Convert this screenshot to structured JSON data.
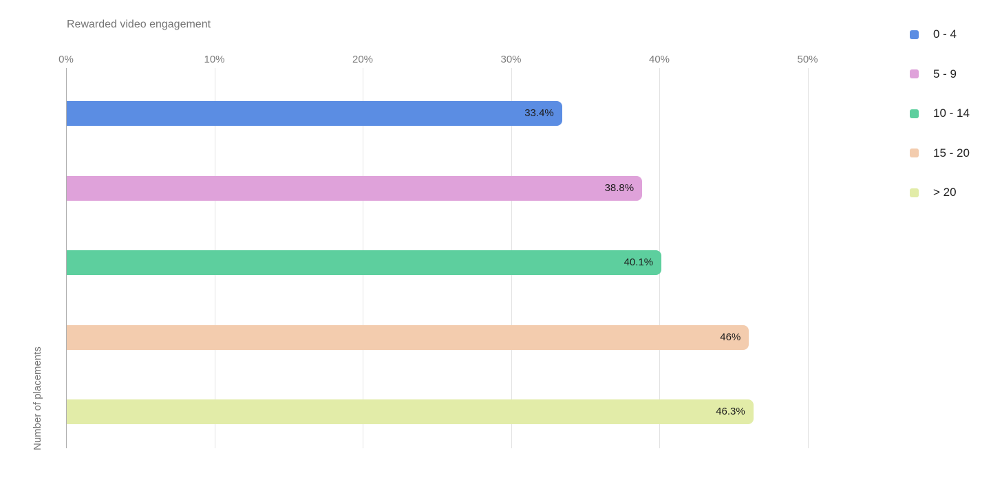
{
  "chart_data": {
    "type": "bar",
    "orientation": "horizontal",
    "title": "Rewarded video engagement",
    "xlabel": "",
    "ylabel": "Number of placements",
    "categories": [
      "0 - 4",
      "5 - 9",
      "10 - 14",
      "15 - 20",
      "> 20"
    ],
    "values": [
      33.4,
      38.8,
      40.1,
      46,
      46.3
    ],
    "value_labels": [
      "33.4%",
      "38.8%",
      "40.1%",
      "46%",
      "46.3%"
    ],
    "colors": [
      "#5B8DE3",
      "#DFA2DA",
      "#5DCF9E",
      "#F3CCAE",
      "#E2ECA8"
    ],
    "x_ticks": [
      "0%",
      "10%",
      "20%",
      "30%",
      "40%",
      "50%"
    ],
    "x_tick_values": [
      0,
      10,
      20,
      30,
      40,
      50
    ],
    "xlim": [
      0,
      53
    ],
    "grid": true,
    "legend_position": "right",
    "legend": [
      {
        "label": "0 - 4",
        "color": "#5B8DE3"
      },
      {
        "label": "5 - 9",
        "color": "#DFA2DA"
      },
      {
        "label": "10 - 14",
        "color": "#5DCF9E"
      },
      {
        "label": "15 - 20",
        "color": "#F3CCAE"
      },
      {
        "label": "> 20",
        "color": "#E2ECA8"
      }
    ],
    "style": {
      "title_color": "#757575",
      "axis_label_color": "#7c7c7c",
      "gridline_color": "#e2e2e2",
      "axis_line_color": "#b0b0b0",
      "value_label_color": "#1d1d1d",
      "legend_label_color": "#212121",
      "background": "#ffffff"
    }
  }
}
